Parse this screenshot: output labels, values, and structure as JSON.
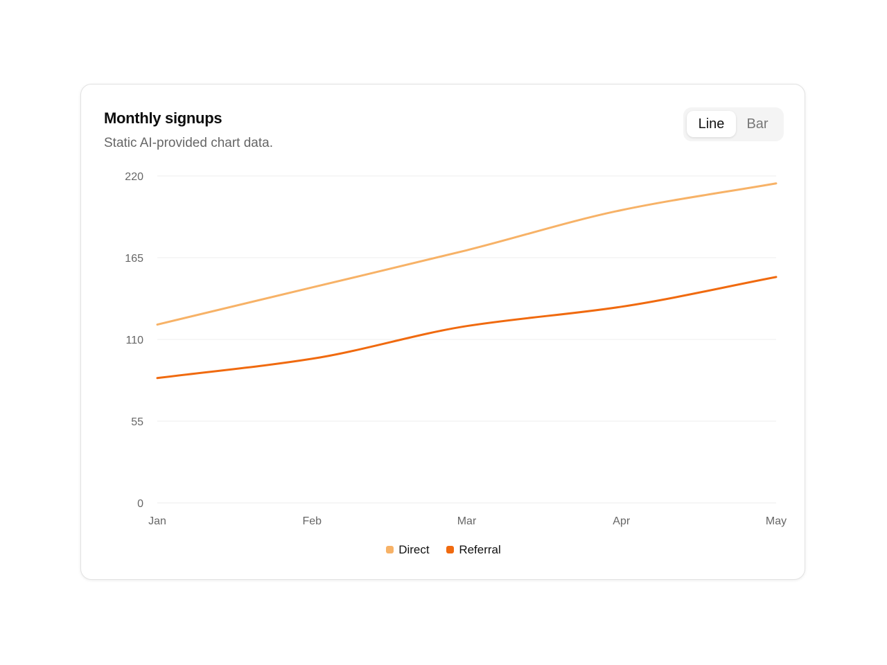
{
  "card": {
    "title": "Monthly signups",
    "subtitle": "Static AI-provided chart data."
  },
  "toggle": {
    "options": [
      "Line",
      "Bar"
    ],
    "selected": "Line"
  },
  "chart_data": {
    "type": "line",
    "title": "Monthly signups",
    "subtitle": "Static AI-provided chart data.",
    "categories": [
      "Jan",
      "Feb",
      "Mar",
      "Apr",
      "May"
    ],
    "series": [
      {
        "name": "Direct",
        "values": [
          120,
          145,
          170,
          197,
          215
        ],
        "color": "#f7b267"
      },
      {
        "name": "Referral",
        "values": [
          84,
          97,
          119,
          132,
          152
        ],
        "color": "#f06a0f"
      }
    ],
    "ylim": [
      0,
      220
    ],
    "yticks": [
      0,
      55,
      110,
      165,
      220
    ],
    "xlabel": "",
    "ylabel": "",
    "grid": true,
    "legend": "bottom-center"
  }
}
